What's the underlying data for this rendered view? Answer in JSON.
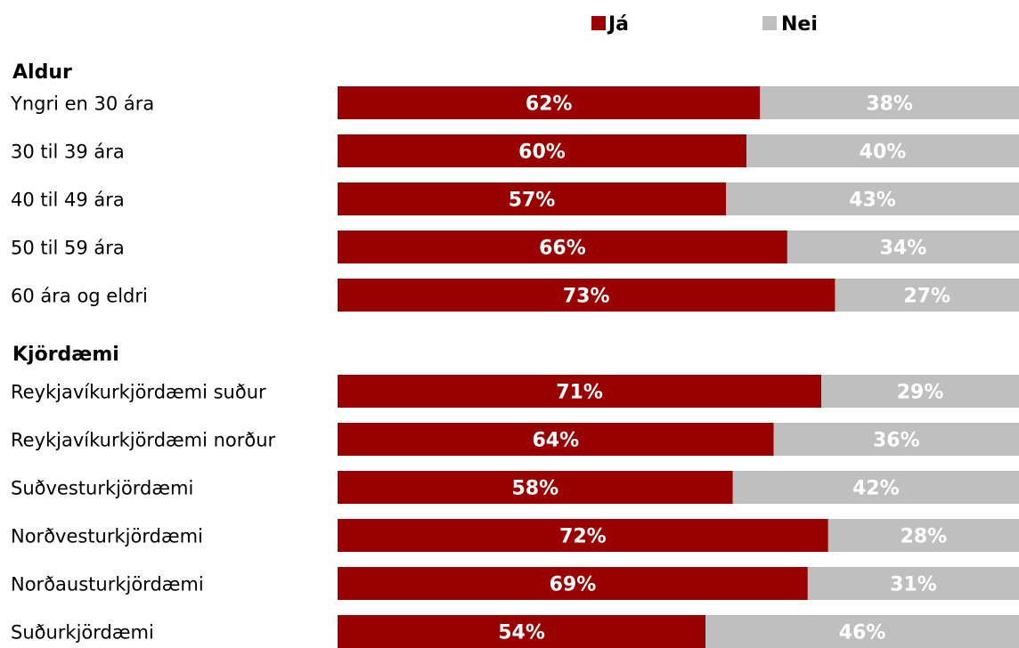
{
  "colors": {
    "ja": "#990000",
    "nei": "#bfbfbf"
  },
  "legend": [
    {
      "label": "Já",
      "color": "#990000"
    },
    {
      "label": "Nei",
      "color": "#bfbfbf"
    }
  ],
  "chart_data": {
    "type": "bar",
    "orientation": "horizontal",
    "stacked": true,
    "xlim": [
      0,
      100
    ],
    "unit": "%",
    "grid": false,
    "legend_position": "top",
    "series": [
      {
        "name": "Já",
        "color": "#990000"
      },
      {
        "name": "Nei",
        "color": "#bfbfbf"
      }
    ],
    "groups": [
      {
        "label": "Aldur",
        "rows": [
          {
            "category": "Yngri en 30 ára",
            "values": [
              62,
              38
            ],
            "labels": [
              "62%",
              "38%"
            ]
          },
          {
            "category": "30 til 39 ára",
            "values": [
              60,
              40
            ],
            "labels": [
              "60%",
              "40%"
            ]
          },
          {
            "category": "40 til 49 ára",
            "values": [
              57,
              43
            ],
            "labels": [
              "57%",
              "43%"
            ]
          },
          {
            "category": "50 til 59 ára",
            "values": [
              66,
              34
            ],
            "labels": [
              "66%",
              "34%"
            ]
          },
          {
            "category": "60 ára og eldri",
            "values": [
              73,
              27
            ],
            "labels": [
              "73%",
              "27%"
            ]
          }
        ]
      },
      {
        "label": "Kjördæmi",
        "rows": [
          {
            "category": "Reykjavíkurkjördæmi suður",
            "values": [
              71,
              29
            ],
            "labels": [
              "71%",
              "29%"
            ]
          },
          {
            "category": "Reykjavíkurkjördæmi norður",
            "values": [
              64,
              36
            ],
            "labels": [
              "64%",
              "36%"
            ]
          },
          {
            "category": "Suðvesturkjördæmi",
            "values": [
              58,
              42
            ],
            "labels": [
              "58%",
              "42%"
            ]
          },
          {
            "category": "Norðvesturkjördæmi",
            "values": [
              72,
              28
            ],
            "labels": [
              "72%",
              "28%"
            ]
          },
          {
            "category": "Norðausturkjördæmi",
            "values": [
              69,
              31
            ],
            "labels": [
              "69%",
              "31%"
            ]
          },
          {
            "category": "Suðurkjördæmi",
            "values": [
              54,
              46
            ],
            "labels": [
              "54%",
              "46%"
            ]
          }
        ]
      }
    ]
  }
}
